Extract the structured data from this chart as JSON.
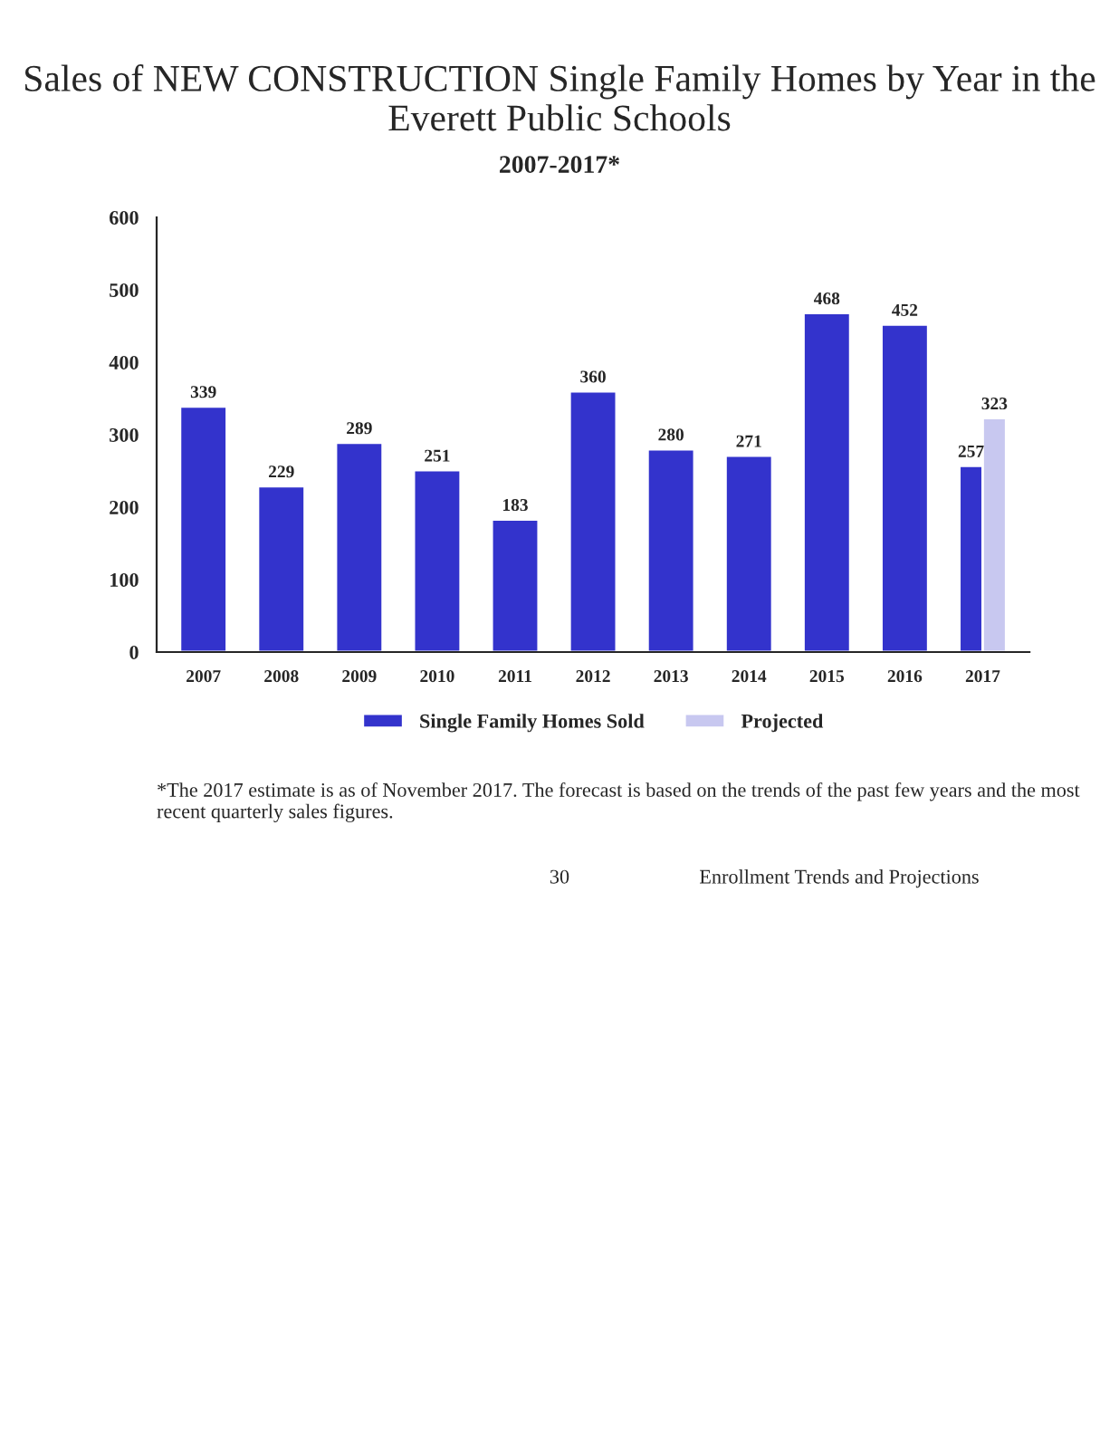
{
  "chart_data": {
    "type": "bar",
    "title": "Sales of NEW CONSTRUCTION Single Family Homes by Year in the Everett Public Schools",
    "subtitle": "2007-2017*",
    "categories": [
      "2007",
      "2008",
      "2009",
      "2010",
      "2011",
      "2012",
      "2013",
      "2014",
      "2015",
      "2016",
      "2017"
    ],
    "series": [
      {
        "name": "Single Family Homes Sold",
        "color": "#3333cc",
        "values": [
          339,
          229,
          289,
          251,
          183,
          360,
          280,
          271,
          468,
          452,
          257
        ]
      },
      {
        "name": "Projected",
        "color": "#c8c8f0",
        "values": [
          null,
          null,
          null,
          null,
          null,
          null,
          null,
          null,
          null,
          null,
          323
        ]
      }
    ],
    "ylim": [
      0,
      600
    ],
    "yticks": [
      0,
      100,
      200,
      300,
      400,
      500,
      600
    ],
    "data_labels": true,
    "grid": false,
    "legend": "bottom",
    "annotations": [
      "*The 2017 estimate is as of November 2017. The forecast is based on the trends of the past few years and the most recent quarterly sales figures.",
      "30",
      "Enrollment Trends and Projections"
    ]
  }
}
